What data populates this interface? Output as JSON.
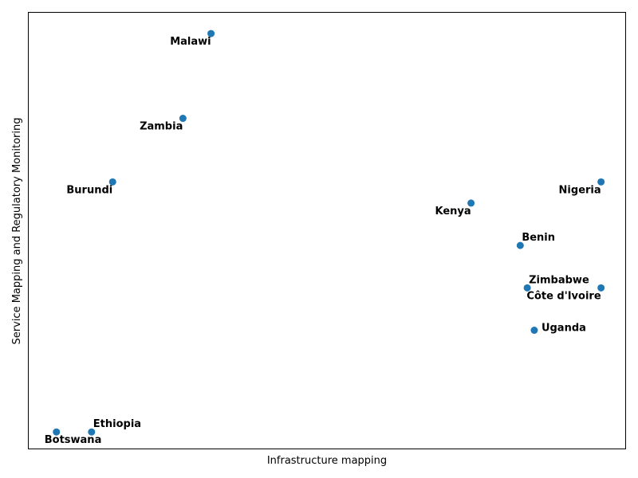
{
  "chart_data": {
    "type": "scatter",
    "title": "",
    "xlabel": "Infrastructure mapping",
    "ylabel": "Service Mapping and Regulatory Monitoring",
    "xlim": [
      0.0,
      8.5
    ],
    "ylim": [
      0.0,
      10.3
    ],
    "grid": false,
    "marker_color": "#1f77b4",
    "points": [
      {
        "label": "Malawi",
        "x": 2.6,
        "y": 9.8,
        "label_pos": "below-left"
      },
      {
        "label": "Zambia",
        "x": 2.2,
        "y": 7.8,
        "label_pos": "below-left"
      },
      {
        "label": "Burundi",
        "x": 1.2,
        "y": 6.3,
        "label_pos": "below-left"
      },
      {
        "label": "Nigeria",
        "x": 8.15,
        "y": 6.3,
        "label_pos": "below-left"
      },
      {
        "label": "Kenya",
        "x": 6.3,
        "y": 5.8,
        "label_pos": "below-left"
      },
      {
        "label": "Benin",
        "x": 7.0,
        "y": 4.8,
        "label_pos": "above-right"
      },
      {
        "label": "Zimbabwe",
        "x": 7.1,
        "y": 3.8,
        "label_pos": "above-right"
      },
      {
        "label": "Côte d'Ivoire",
        "x": 8.15,
        "y": 3.8,
        "label_pos": "below-left"
      },
      {
        "label": "Uganda",
        "x": 7.2,
        "y": 2.8,
        "label_pos": "right"
      },
      {
        "label": "Ethiopia",
        "x": 0.9,
        "y": 0.4,
        "label_pos": "above-right"
      },
      {
        "label": "Botswana",
        "x": 0.4,
        "y": 0.4,
        "label_pos": "below-right"
      }
    ]
  }
}
